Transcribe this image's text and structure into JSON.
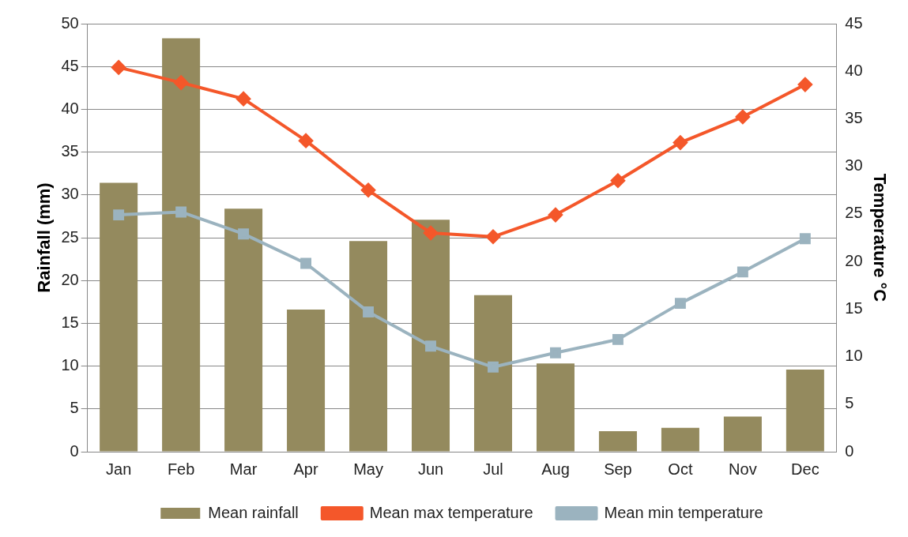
{
  "chart_data": {
    "type": "bar",
    "categories": [
      "Jan",
      "Feb",
      "Mar",
      "Apr",
      "May",
      "Jun",
      "Jul",
      "Aug",
      "Sep",
      "Oct",
      "Nov",
      "Dec"
    ],
    "ylabel": "Rainfall (mm)",
    "y2label": "Temperature °C",
    "ylim": [
      0,
      50
    ],
    "yticks": [
      0,
      5,
      10,
      15,
      20,
      25,
      30,
      35,
      40,
      45,
      50
    ],
    "y2lim": [
      0,
      45
    ],
    "y2ticks": [
      0,
      5,
      10,
      15,
      20,
      25,
      30,
      35,
      40,
      45
    ],
    "grid": "y",
    "legend": "bottom",
    "series": [
      {
        "name": "Mean rainfall",
        "color": "#948a5e",
        "values": [
          31.4,
          48.3,
          28.4,
          16.6,
          24.6,
          27.1,
          18.3,
          10.3,
          2.4,
          2.8,
          4.1,
          9.6
        ]
      },
      {
        "name": "Mean max temperature",
        "type": "line",
        "axis": "y2",
        "marker": "diamond",
        "color": "#f4572a",
        "values": [
          40.4,
          38.8,
          37.1,
          32.7,
          27.5,
          23.0,
          22.6,
          24.9,
          28.5,
          32.5,
          35.2,
          38.6
        ]
      },
      {
        "name": "Mean min temperature",
        "type": "line",
        "axis": "y2",
        "marker": "square",
        "color": "#9bb3bf",
        "values": [
          24.9,
          25.2,
          22.9,
          19.8,
          14.7,
          11.1,
          8.9,
          10.4,
          11.8,
          15.6,
          18.9,
          22.4
        ]
      }
    ]
  }
}
